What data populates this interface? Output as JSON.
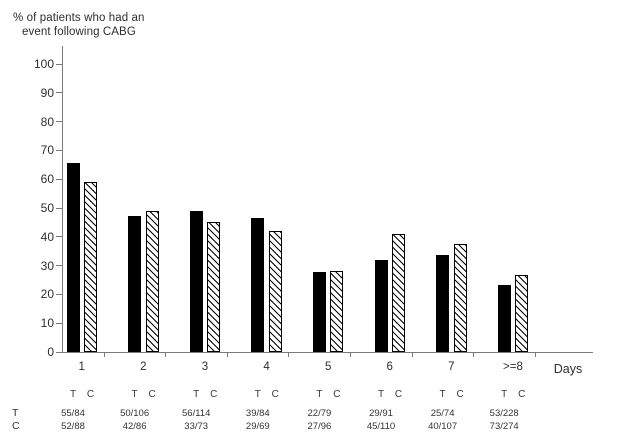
{
  "title": {
    "line1": "% of patients who had an",
    "line2": "event following CABG"
  },
  "chart_data": {
    "type": "bar",
    "title": "% of patients who had an event following CABG",
    "ylabel": "% of patients who had an event following CABG",
    "xlabel": "Days",
    "ylim": [
      0,
      100
    ],
    "yticks": [
      0,
      10,
      20,
      30,
      40,
      50,
      60,
      70,
      80,
      90,
      100
    ],
    "grid": false,
    "legend_position": "none",
    "categories": [
      "1",
      "2",
      "3",
      "4",
      "5",
      "6",
      "7",
      ">=8"
    ],
    "series": [
      {
        "name": "T",
        "style": "solid-black",
        "color": "#000000",
        "values": [
          65.5,
          47.2,
          49.1,
          46.4,
          27.8,
          31.9,
          33.8,
          23.2
        ],
        "fractions": [
          "55/84",
          "50/106",
          "56/114",
          "39/84",
          "22/79",
          "29/91",
          "25/74",
          "53/228"
        ]
      },
      {
        "name": "C",
        "style": "diagonal-hatch",
        "color": "#ffffff",
        "values": [
          59.1,
          48.8,
          45.2,
          42.0,
          28.1,
          40.9,
          37.4,
          26.6
        ],
        "fractions": [
          "52/88",
          "42/86",
          "33/73",
          "29/69",
          "27/96",
          "45/110",
          "40/107",
          "73/274"
        ]
      }
    ]
  },
  "colors": {
    "axis": "#7a7a7a",
    "text": "#2e2e2e",
    "bar_t": "#000000",
    "bar_c_bg": "#ffffff"
  }
}
